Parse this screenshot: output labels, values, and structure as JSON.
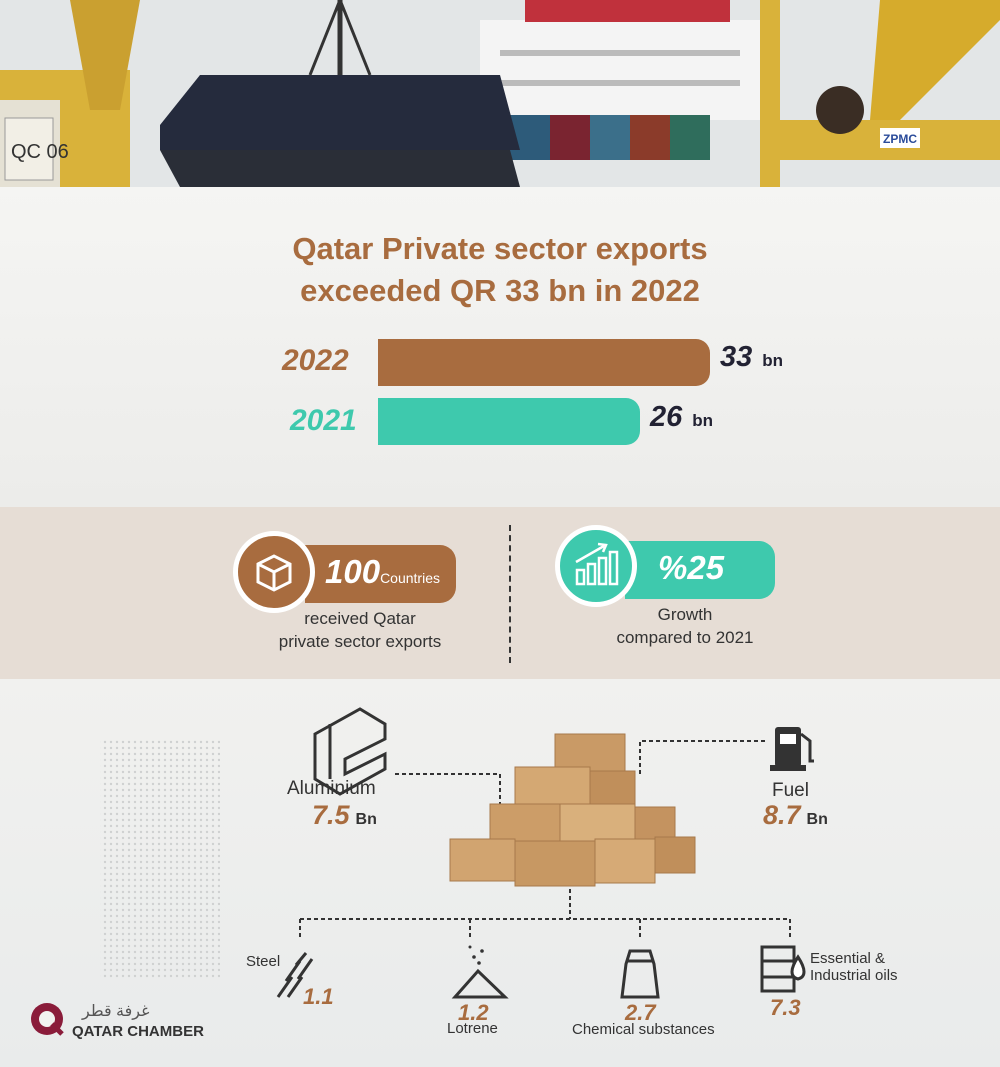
{
  "chart_data": {
    "type": "bar",
    "title_line1": "Qatar Private sector exports",
    "title_line2": "exceeded QR 33 bn in 2022",
    "categories": [
      "2022",
      "2021"
    ],
    "values": [
      33,
      26
    ],
    "value_labels": [
      "33",
      "26"
    ],
    "unit": "bn",
    "colors": [
      "#a86c3f",
      "#3ec9ad"
    ]
  },
  "stats": {
    "countries": {
      "value": "100",
      "unit": "Countries",
      "caption_line1": "received Qatar",
      "caption_line2": "private sector exports"
    },
    "growth": {
      "value": "%25",
      "caption_line1": "Growth",
      "caption_line2": "compared to 2021"
    }
  },
  "products": {
    "aluminium": {
      "label": "Aluminium",
      "value": "7.5",
      "unit": "Bn"
    },
    "fuel": {
      "label": "Fuel",
      "value": "8.7",
      "unit": "Bn"
    },
    "steel": {
      "label": "Steel",
      "value": "1.1"
    },
    "lotrene": {
      "label": "Lotrene",
      "value": "1.2"
    },
    "chemical": {
      "label": "Chemical substances",
      "value": "2.7"
    },
    "oils": {
      "label_line1": "Essential &",
      "label_line2": "Industrial oils",
      "value": "7.3"
    }
  },
  "logo": {
    "arabic": "غرفة قطر",
    "english": "QATAR CHAMBER"
  },
  "photo_text": {
    "crane_label": "QC 06",
    "brand": "ZPMC"
  }
}
